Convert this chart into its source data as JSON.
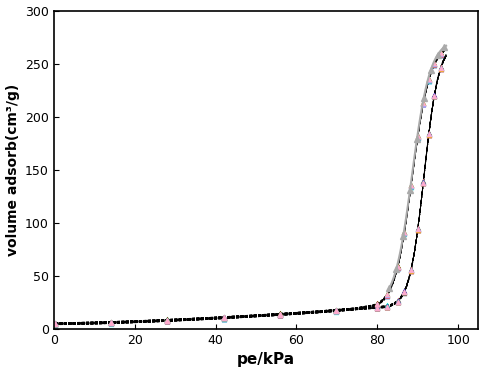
{
  "title": "",
  "xlabel": "pe/kPa",
  "ylabel": "volume adsorb(cm³/g)",
  "xlim": [
    0,
    105
  ],
  "ylim": [
    0,
    300
  ],
  "xticks": [
    0,
    20,
    40,
    60,
    80,
    100
  ],
  "yticks": [
    0,
    50,
    100,
    150,
    200,
    250,
    300
  ],
  "marker_colors": [
    "#000000",
    "#ff0000",
    "#00cc00",
    "#0000ff",
    "#ff8800",
    "#cc00cc",
    "#00cccc",
    "#cccc00",
    "#ff00ff",
    "#00ffff",
    "#884400",
    "#888888",
    "#ff4466",
    "#44ff44",
    "#4444ff",
    "#ffaa00",
    "#aaaaff",
    "#ffaacc"
  ],
  "background_color": "#ffffff",
  "figsize": [
    4.84,
    3.73
  ],
  "dpi": 100
}
